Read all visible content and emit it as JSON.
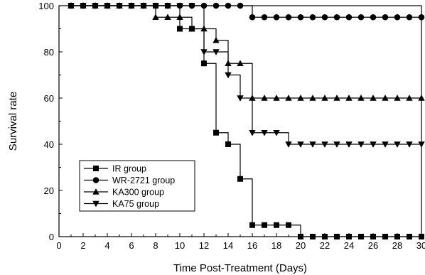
{
  "chart_data": {
    "type": "line",
    "step": true,
    "xlabel": "Time Post-Treatment (Days)",
    "ylabel": "Survival rate",
    "xlim": [
      0,
      30
    ],
    "ylim": [
      0,
      100
    ],
    "xticks": [
      0,
      2,
      4,
      6,
      8,
      10,
      12,
      14,
      16,
      18,
      20,
      22,
      24,
      26,
      28,
      30
    ],
    "yticks": [
      0,
      20,
      40,
      60,
      80,
      100
    ],
    "grid": false,
    "legend_position": "lower-left",
    "x": [
      1,
      2,
      3,
      4,
      5,
      6,
      7,
      8,
      9,
      10,
      11,
      12,
      13,
      14,
      15,
      16,
      17,
      18,
      19,
      20,
      21,
      22,
      23,
      24,
      25,
      26,
      27,
      28,
      29,
      30
    ],
    "series": [
      {
        "name": "IR group",
        "marker": "square",
        "values": [
          100,
          100,
          100,
          100,
          100,
          100,
          100,
          100,
          100,
          90,
          90,
          75,
          45,
          40,
          25,
          5,
          5,
          5,
          5,
          0,
          0,
          0,
          0,
          0,
          0,
          0,
          0,
          0,
          0,
          0
        ]
      },
      {
        "name": "WR-2721 group",
        "marker": "circle",
        "values": [
          100,
          100,
          100,
          100,
          100,
          100,
          100,
          100,
          100,
          100,
          100,
          100,
          100,
          100,
          100,
          95,
          95,
          95,
          95,
          95,
          95,
          95,
          95,
          95,
          95,
          95,
          95,
          95,
          95,
          95
        ]
      },
      {
        "name": "KA300 group",
        "marker": "triangle-up",
        "values": [
          100,
          100,
          100,
          100,
          100,
          100,
          100,
          95,
          95,
          95,
          90,
          90,
          85,
          75,
          75,
          60,
          60,
          60,
          60,
          60,
          60,
          60,
          60,
          60,
          60,
          60,
          60,
          60,
          60,
          60
        ]
      },
      {
        "name": "KA75 group",
        "marker": "triangle-down",
        "values": [
          100,
          100,
          100,
          100,
          100,
          100,
          100,
          100,
          100,
          100,
          100,
          80,
          80,
          70,
          60,
          45,
          45,
          45,
          40,
          40,
          40,
          40,
          40,
          40,
          40,
          40,
          40,
          40,
          40,
          40
        ]
      }
    ]
  }
}
